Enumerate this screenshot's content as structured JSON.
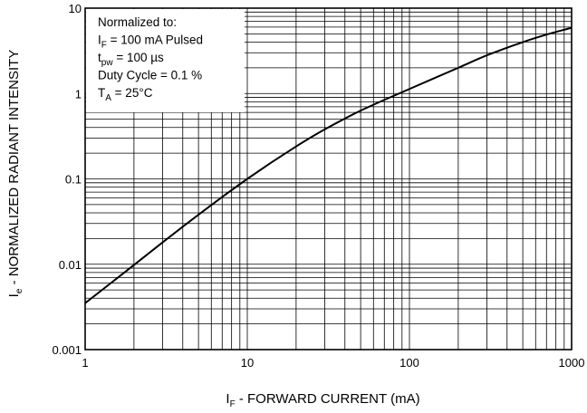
{
  "chart_data": {
    "type": "line",
    "xscale": "log",
    "yscale": "log",
    "xlim": [
      1,
      1000
    ],
    "ylim": [
      0.001,
      10
    ],
    "grid": true,
    "x_ticks": [
      "1",
      "10",
      "100",
      "1000"
    ],
    "y_ticks": [
      "0.001",
      "0.01",
      "0.1",
      "1",
      "10"
    ],
    "xlabel": {
      "main": "I",
      "sub": "F",
      "rest": " - FORWARD CURRENT (mA)"
    },
    "ylabel": {
      "main": "I",
      "sub": "e",
      "rest": " - NORMALIZED RADIANT INTENSITY"
    },
    "legend": {
      "position": "top-left",
      "lines": [
        {
          "main": "Normalized to:",
          "sub": "",
          "rest": ""
        },
        {
          "main": "I",
          "sub": "F",
          "rest": " = 100 mA Pulsed"
        },
        {
          "main": "t",
          "sub": "pw",
          "rest": " = 100 µs"
        },
        {
          "main": "Duty Cycle = 0.1 %",
          "sub": "",
          "rest": ""
        },
        {
          "main": "T",
          "sub": "A",
          "rest": " = 25°C"
        }
      ]
    },
    "series": [
      {
        "x": [
          1,
          2,
          3,
          5,
          10,
          20,
          30,
          50,
          100,
          200,
          300,
          500,
          700,
          1000
        ],
        "values": [
          0.0035,
          0.0098,
          0.018,
          0.038,
          0.1,
          0.24,
          0.38,
          0.63,
          1.13,
          2.0,
          2.8,
          4.0,
          4.9,
          5.9
        ]
      }
    ]
  }
}
